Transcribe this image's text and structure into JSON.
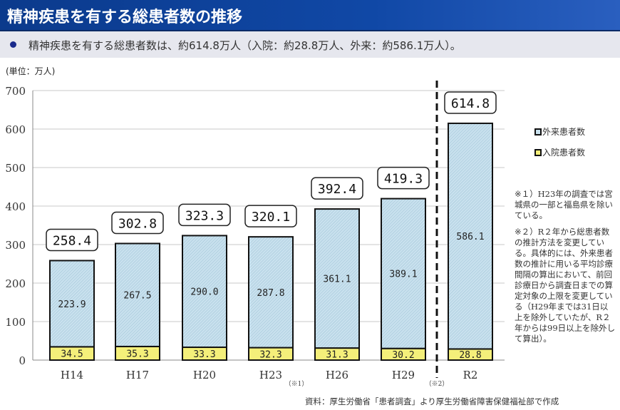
{
  "header": {
    "title": "精神疾患を有する総患者数の推移"
  },
  "summary": "精神疾患を有する総患者数は、約614.8万人（入院：約28.8万人、外来：約586.1万人）。",
  "notes": [
    "※１）H23年の調査では宮城県の一部と福島県を除いている。",
    "※２）R２年から総患者数の推計方法を変更している。具体的には、外来患者数の推計に用いる平均診療間隔の算出において、前回診療日から調査日までの算定対象の上限を変更している（H29年までは31日以上を除外していたが、R２年からは99日以上を除外して算出）。"
  ],
  "markers": {
    "h23": "（※1）",
    "r2": "（※2）"
  },
  "source": "資料：厚生労働省「患者調査」より厚生労働省障害保健福祉部で作成",
  "chart_data": {
    "type": "bar",
    "stacked": true,
    "unit_label": "(単位：万人)",
    "categories": [
      "H14",
      "H17",
      "H20",
      "H23",
      "H26",
      "H29",
      "R2"
    ],
    "series": [
      {
        "name": "入院患者数",
        "values": [
          34.5,
          35.3,
          33.3,
          32.3,
          31.3,
          30.2,
          28.8
        ],
        "color": "#f4ef7a"
      },
      {
        "name": "外来患者数",
        "values": [
          223.9,
          267.5,
          290.0,
          287.8,
          361.1,
          389.1,
          586.1
        ],
        "color": "#c9e1ee"
      }
    ],
    "totals": [
      258.4,
      302.8,
      323.3,
      320.1,
      392.4,
      419.3,
      614.8
    ],
    "ylim": [
      0,
      700
    ],
    "yticks": [
      0,
      100,
      200,
      300,
      400,
      500,
      600,
      700
    ],
    "grid": true,
    "legend": "right",
    "divider_between": [
      "H29",
      "R2"
    ]
  }
}
